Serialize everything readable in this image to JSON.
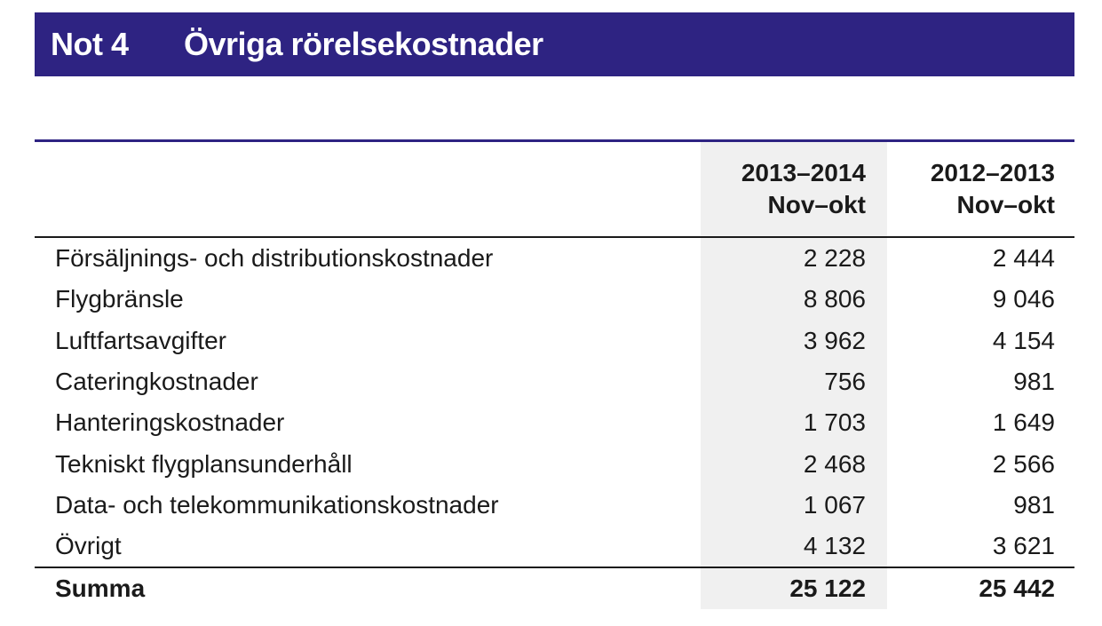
{
  "note": {
    "number": "Not 4",
    "title": "Övriga rörelsekostnader"
  },
  "table": {
    "columns": [
      {
        "line1": "2013–2014",
        "line2": "Nov–okt"
      },
      {
        "line1": "2012–2013",
        "line2": "Nov–okt"
      }
    ],
    "rows": [
      {
        "label": "Försäljnings- och distributionskostnader",
        "cur": "2 228",
        "prev": "2 444"
      },
      {
        "label": "Flygbränsle",
        "cur": "8 806",
        "prev": "9 046"
      },
      {
        "label": "Luftfartsavgifter",
        "cur": "3 962",
        "prev": "4 154"
      },
      {
        "label": "Cateringkostnader",
        "cur": "756",
        "prev": "981"
      },
      {
        "label": "Hanteringskostnader",
        "cur": "1 703",
        "prev": "1 649"
      },
      {
        "label": "Tekniskt flygplansunderhåll",
        "cur": "2 468",
        "prev": "2 566"
      },
      {
        "label": "Data- och telekommunikationskostnader",
        "cur": "1 067",
        "prev": "981"
      },
      {
        "label": "Övrigt",
        "cur": "4 132",
        "prev": "3 621"
      }
    ],
    "total": {
      "label": "Summa",
      "cur": "25 122",
      "prev": "25 442"
    }
  },
  "colors": {
    "header_bg": "#2e2382",
    "header_text": "#ffffff",
    "shaded_column": "#f0f0f0"
  }
}
